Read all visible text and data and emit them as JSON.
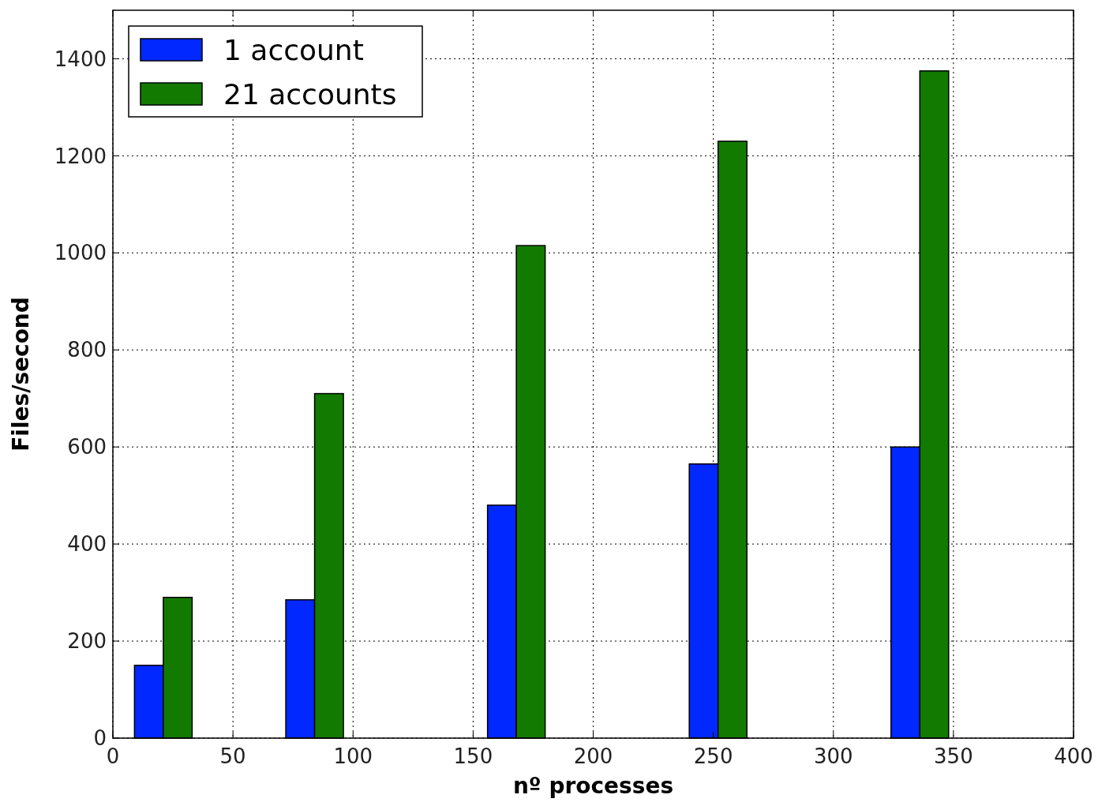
{
  "chart_data": {
    "type": "bar",
    "xlabel": "nº processes",
    "ylabel": "Files/second",
    "x": [
      21,
      84,
      168,
      252,
      336
    ],
    "series": [
      {
        "name": "1 account",
        "color": "#0028ff",
        "values": [
          150,
          285,
          480,
          565,
          600
        ]
      },
      {
        "name": "21 accounts",
        "color": "#137a00",
        "values": [
          290,
          710,
          1015,
          1230,
          1375
        ]
      }
    ],
    "xlim": [
      0,
      400
    ],
    "xticks": [
      0,
      50,
      100,
      150,
      200,
      250,
      300,
      350,
      400
    ],
    "ylim": [
      0,
      1500
    ],
    "yticks": [
      0,
      200,
      400,
      600,
      800,
      1000,
      1200,
      1400
    ],
    "grid": true,
    "legend": "top left"
  }
}
